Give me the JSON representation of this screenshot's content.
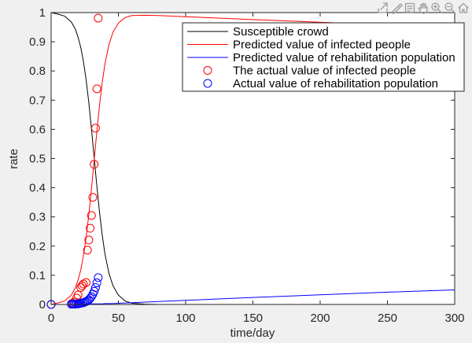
{
  "figure": {
    "background": "#f0f0f0"
  },
  "axes_toolbar": {
    "icons": [
      "export-icon",
      "brush-icon",
      "data-tips-icon",
      "pan-icon",
      "zoom-in-icon",
      "zoom-out-icon",
      "restore-view-icon"
    ]
  },
  "chart_data": {
    "type": "line",
    "xlabel": "time/day",
    "ylabel": "rate",
    "xlim": [
      0,
      300
    ],
    "ylim": [
      0,
      1
    ],
    "xticks": [
      "0",
      "50",
      "100",
      "150",
      "200",
      "250",
      "300"
    ],
    "yticks": [
      "0",
      "0.1",
      "0.2",
      "0.3",
      "0.4",
      "0.5",
      "0.6",
      "0.7",
      "0.8",
      "0.9",
      "1"
    ],
    "grid": false,
    "legend": "top-right",
    "series": [
      {
        "name": "Susceptible crowd",
        "type": "line",
        "color": "#000000",
        "x": [
          0,
          5,
          10,
          15,
          18,
          20,
          22,
          24,
          26,
          28,
          30,
          32,
          34,
          36,
          38,
          40,
          43,
          46,
          50,
          55,
          60,
          70,
          80,
          100,
          150,
          200,
          250,
          300
        ],
        "y": [
          1,
          0.995,
          0.988,
          0.968,
          0.943,
          0.916,
          0.881,
          0.833,
          0.77,
          0.692,
          0.601,
          0.503,
          0.405,
          0.315,
          0.237,
          0.173,
          0.106,
          0.064,
          0.032,
          0.012,
          0.004,
          0.001,
          0,
          0,
          0,
          0,
          0,
          0
        ]
      },
      {
        "name": "Predicted value of infected people",
        "type": "line",
        "color": "#ff0000",
        "x": [
          0,
          5,
          10,
          15,
          18,
          20,
          22,
          24,
          26,
          28,
          30,
          32,
          34,
          36,
          38,
          40,
          43,
          46,
          50,
          55,
          60,
          70,
          80,
          100,
          150,
          200,
          250,
          300
        ],
        "y": [
          0,
          0.005,
          0.012,
          0.032,
          0.057,
          0.083,
          0.118,
          0.166,
          0.229,
          0.307,
          0.397,
          0.495,
          0.593,
          0.683,
          0.761,
          0.824,
          0.891,
          0.933,
          0.964,
          0.983,
          0.99,
          0.991,
          0.99,
          0.986,
          0.976,
          0.967,
          0.958,
          0.95
        ]
      },
      {
        "name": "Predicted value of rehabilitation population",
        "type": "line",
        "color": "#0000ff",
        "x": [
          0,
          5,
          10,
          15,
          18,
          20,
          22,
          24,
          26,
          28,
          30,
          32,
          34,
          36,
          38,
          40,
          43,
          46,
          50,
          55,
          60,
          70,
          80,
          100,
          150,
          200,
          250,
          300
        ],
        "y": [
          0,
          0,
          0,
          0,
          0,
          0.001,
          0.001,
          0.001,
          0.001,
          0.001,
          0.002,
          0.002,
          0.002,
          0.002,
          0.002,
          0.003,
          0.003,
          0.003,
          0.004,
          0.005,
          0.006,
          0.008,
          0.01,
          0.014,
          0.024,
          0.033,
          0.042,
          0.05
        ]
      },
      {
        "name": "The actual value of infected people",
        "type": "scatter",
        "marker": "circle",
        "color": "#ff0000",
        "x": [
          0,
          15,
          16,
          17,
          19,
          20,
          22,
          23,
          24,
          26,
          27,
          28,
          29,
          30,
          31,
          32,
          33,
          34,
          35
        ],
        "y": [
          0,
          0.002,
          0.004,
          0.008,
          0.022,
          0.032,
          0.058,
          0.064,
          0.07,
          0.075,
          0.186,
          0.221,
          0.261,
          0.305,
          0.367,
          0.48,
          0.604,
          0.739,
          0.981
        ]
      },
      {
        "name": "Actual value of rehabilitation population",
        "type": "scatter",
        "marker": "circle",
        "color": "#0000ff",
        "x": [
          0,
          15,
          16,
          17,
          18,
          19,
          20,
          21,
          22,
          23,
          24,
          25,
          26,
          27,
          28,
          29,
          30,
          31,
          32,
          33,
          34,
          35
        ],
        "y": [
          0,
          0.001,
          0.001,
          0.001,
          0.001,
          0.002,
          0.002,
          0.003,
          0.004,
          0.005,
          0.006,
          0.008,
          0.01,
          0.012,
          0.016,
          0.021,
          0.027,
          0.035,
          0.045,
          0.058,
          0.074,
          0.092
        ]
      }
    ]
  }
}
